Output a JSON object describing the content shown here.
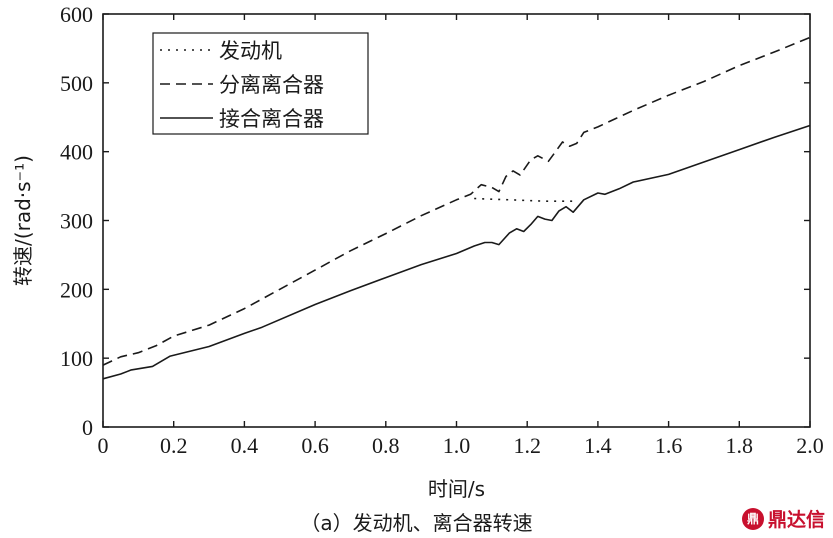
{
  "chart_data": {
    "type": "line",
    "xlabel": "时间/s",
    "ylabel": "转速/(rad·s⁻¹)",
    "xlim": [
      0,
      2.0
    ],
    "ylim": [
      0,
      600
    ],
    "xticks": [
      "0",
      "0.2",
      "0.4",
      "0.6",
      "0.8",
      "1.0",
      "1.2",
      "1.4",
      "1.6",
      "1.8",
      "2.0"
    ],
    "yticks": [
      "0",
      "100",
      "200",
      "300",
      "400",
      "500",
      "600"
    ],
    "grid": false,
    "legend_position": "top-left",
    "series": [
      {
        "name": "发动机",
        "style": "dotted",
        "points": [
          [
            1.05,
            332
          ],
          [
            1.1,
            331
          ],
          [
            1.15,
            330
          ],
          [
            1.2,
            329
          ],
          [
            1.25,
            328
          ],
          [
            1.3,
            328
          ],
          [
            1.34,
            328
          ]
        ]
      },
      {
        "name": "分离离合器",
        "style": "dashed",
        "points": [
          [
            0,
            90
          ],
          [
            0.05,
            102
          ],
          [
            0.1,
            108
          ],
          [
            0.15,
            118
          ],
          [
            0.2,
            132
          ],
          [
            0.3,
            148
          ],
          [
            0.4,
            172
          ],
          [
            0.5,
            200
          ],
          [
            0.6,
            228
          ],
          [
            0.7,
            256
          ],
          [
            0.8,
            281
          ],
          [
            0.9,
            307
          ],
          [
            1.0,
            330
          ],
          [
            1.04,
            338
          ],
          [
            1.07,
            352
          ],
          [
            1.1,
            348
          ],
          [
            1.12,
            342
          ],
          [
            1.14,
            364
          ],
          [
            1.16,
            372
          ],
          [
            1.18,
            366
          ],
          [
            1.21,
            388
          ],
          [
            1.23,
            394
          ],
          [
            1.26,
            386
          ],
          [
            1.28,
            400
          ],
          [
            1.3,
            414
          ],
          [
            1.32,
            408
          ],
          [
            1.34,
            412
          ],
          [
            1.36,
            428
          ],
          [
            1.4,
            436
          ],
          [
            1.45,
            448
          ],
          [
            1.5,
            460
          ],
          [
            1.6,
            482
          ],
          [
            1.7,
            502
          ],
          [
            1.8,
            525
          ],
          [
            1.9,
            545
          ],
          [
            2.0,
            566
          ]
        ]
      },
      {
        "name": "接合离合器",
        "style": "solid",
        "points": [
          [
            0,
            70
          ],
          [
            0.05,
            77
          ],
          [
            0.08,
            83
          ],
          [
            0.14,
            88
          ],
          [
            0.19,
            103
          ],
          [
            0.3,
            117
          ],
          [
            0.4,
            136
          ],
          [
            0.45,
            145
          ],
          [
            0.6,
            178
          ],
          [
            0.7,
            198
          ],
          [
            0.8,
            217
          ],
          [
            0.9,
            236
          ],
          [
            1.0,
            252
          ],
          [
            1.05,
            263
          ],
          [
            1.08,
            268
          ],
          [
            1.1,
            268
          ],
          [
            1.12,
            265
          ],
          [
            1.15,
            282
          ],
          [
            1.17,
            288
          ],
          [
            1.19,
            284
          ],
          [
            1.21,
            294
          ],
          [
            1.23,
            306
          ],
          [
            1.25,
            302
          ],
          [
            1.27,
            300
          ],
          [
            1.29,
            314
          ],
          [
            1.31,
            320
          ],
          [
            1.33,
            312
          ],
          [
            1.36,
            330
          ],
          [
            1.4,
            340
          ],
          [
            1.42,
            338
          ],
          [
            1.46,
            346
          ],
          [
            1.5,
            356
          ],
          [
            1.6,
            367
          ],
          [
            1.7,
            385
          ],
          [
            1.8,
            403
          ],
          [
            1.9,
            421
          ],
          [
            2.0,
            438
          ]
        ]
      }
    ]
  },
  "caption": "（a）发动机、离合器转速",
  "watermark": {
    "logo_text": "鼎",
    "text": "鼎达信",
    "color": "#c8102e"
  }
}
